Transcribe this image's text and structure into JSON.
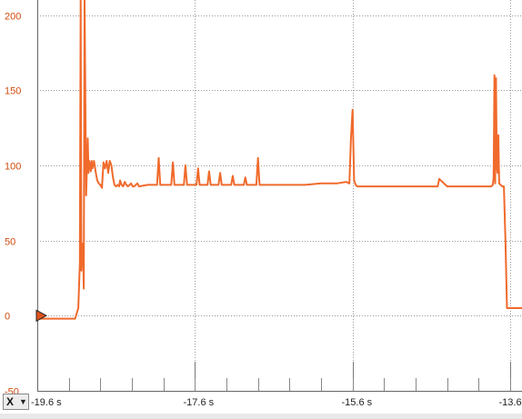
{
  "colors": {
    "signal": "#f06a2c",
    "grid": "#9a9a9a",
    "y_labels": "#d24a0e",
    "axis": "#222222"
  },
  "axis_selector": {
    "label": "X",
    "icon": "dropdown-caret-icon"
  },
  "chart_data": {
    "type": "line",
    "xlim": [
      -19.6,
      -13.45
    ],
    "ylim": [
      -50,
      210
    ],
    "y_ticks": [
      200,
      150,
      100,
      50,
      0,
      -50
    ],
    "y_tick_labels": [
      "200",
      "150",
      "100",
      "50",
      "0",
      "-50"
    ],
    "x_ticks": [
      -19.6,
      -17.6,
      -15.6,
      -13.6
    ],
    "x_tick_labels": [
      "-19.6 s",
      "-17.6 s",
      "-15.6 s",
      "-13.6 s"
    ],
    "grid": true,
    "trigger_marker": {
      "x": -19.6,
      "y": 0
    },
    "series": [
      {
        "color": "#f06a2c",
        "x": [
          -19.6,
          -19.12,
          -19.08,
          -19.06,
          -19.05,
          -19.04,
          -19.03,
          -19.02,
          -19.01,
          -19.0,
          -18.98,
          -18.96,
          -18.95,
          -18.94,
          -18.93,
          -18.92,
          -18.91,
          -18.9,
          -18.88,
          -18.86,
          -18.84,
          -18.82,
          -18.8,
          -18.78,
          -18.76,
          -18.74,
          -18.72,
          -18.7,
          -18.68,
          -18.66,
          -18.64,
          -18.62,
          -18.6,
          -18.58,
          -18.56,
          -18.55,
          -18.53,
          -18.51,
          -18.49,
          -18.47,
          -18.45,
          -18.43,
          -18.41,
          -18.39,
          -18.37,
          -18.35,
          -18.33,
          -18.31,
          -18.2,
          -18.08,
          -18.06,
          -18.04,
          -17.9,
          -17.88,
          -17.86,
          -17.74,
          -17.72,
          -17.7,
          -17.58,
          -17.56,
          -17.54,
          -17.44,
          -17.42,
          -17.4,
          -17.3,
          -17.28,
          -17.26,
          -17.14,
          -17.12,
          -17.1,
          -16.98,
          -16.96,
          -16.94,
          -16.82,
          -16.8,
          -16.78,
          -16.5,
          -16.2,
          -16.0,
          -15.8,
          -15.68,
          -15.64,
          -15.62,
          -15.6,
          -15.58,
          -15.56,
          -15.54,
          -15.3,
          -15.0,
          -14.7,
          -14.54,
          -14.52,
          -14.5,
          -14.4,
          -14.1,
          -13.9,
          -13.84,
          -13.82,
          -13.81,
          -13.8,
          -13.79,
          -13.78,
          -13.77,
          -13.76,
          -13.75,
          -13.74,
          -13.72,
          -13.7,
          -13.68,
          -13.66,
          -13.64,
          -13.62,
          -13.6,
          -13.55,
          -13.5,
          -13.45
        ],
        "y": [
          -2,
          -2,
          5,
          35,
          210,
          30,
          45,
          48,
          18,
          210,
          80,
          118,
          95,
          103,
          100,
          96,
          103,
          98,
          103,
          96,
          90,
          88,
          87,
          85,
          102,
          98,
          103,
          95,
          103,
          100,
          92,
          87,
          86,
          87,
          86,
          90,
          87,
          86,
          89,
          87,
          86,
          87,
          88,
          86,
          86,
          87,
          88,
          86,
          87,
          87,
          105,
          87,
          87,
          102,
          87,
          87,
          100,
          87,
          87,
          98,
          87,
          87,
          96,
          87,
          87,
          95,
          87,
          87,
          93,
          87,
          87,
          92,
          87,
          87,
          105,
          87,
          87,
          87,
          88,
          88,
          89,
          88,
          118,
          137,
          90,
          87,
          86,
          86,
          86,
          86,
          86,
          86,
          91,
          86,
          86,
          86,
          86,
          87,
          92,
          160,
          88,
          158,
          100,
          95,
          120,
          88,
          87,
          86,
          86,
          50,
          5,
          5,
          5,
          5,
          5,
          5
        ]
      }
    ]
  }
}
